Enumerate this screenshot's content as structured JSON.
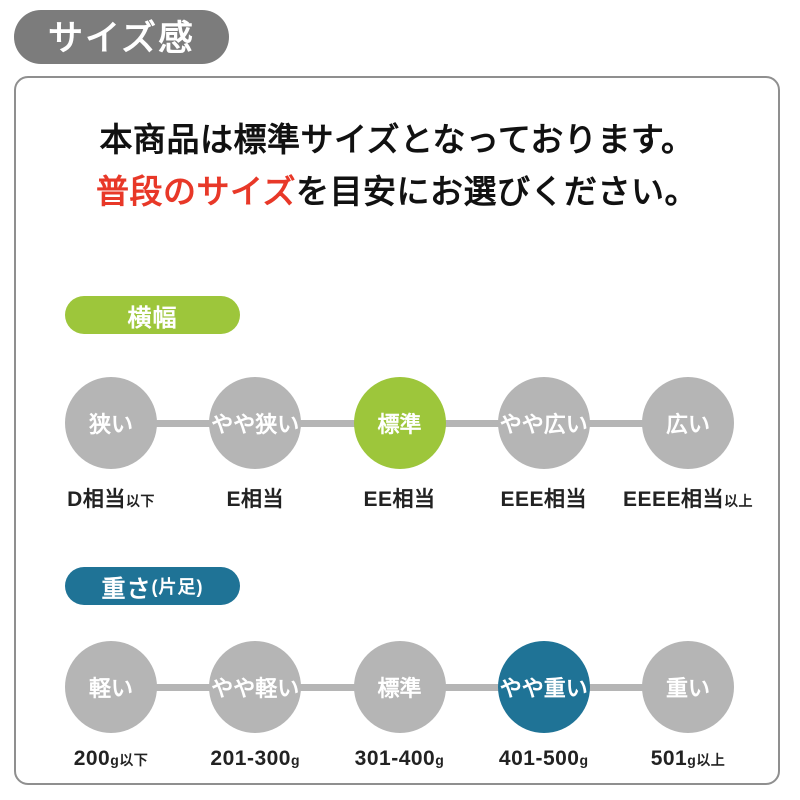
{
  "page": {
    "title_badge": "サイズ感",
    "intro_line1": "本商品は標準サイズとなっております。",
    "intro_line2_highlight": "普段のサイズ",
    "intro_line2_rest": "を目安にお選びください。"
  },
  "colors": {
    "green": "#9dc63b",
    "blue": "#1f7396",
    "gray_circle": "#b5b5b5",
    "badge_gray": "#7c7c7c",
    "border_gray": "#8f8f8f",
    "red": "#e83828"
  },
  "sections": [
    {
      "id": "width",
      "badge": "横幅",
      "badge_suffix": "",
      "accent": "green",
      "steps": [
        {
          "circle": "狭い",
          "active": false,
          "label_main": "D相当",
          "label_suffix": "以下"
        },
        {
          "circle": "やや狭い",
          "active": false,
          "label_main": "E相当",
          "label_suffix": ""
        },
        {
          "circle": "標準",
          "active": true,
          "label_main": "EE相当",
          "label_suffix": ""
        },
        {
          "circle": "やや広い",
          "active": false,
          "label_main": "EEE相当",
          "label_suffix": ""
        },
        {
          "circle": "広い",
          "active": false,
          "label_main": "EEEE相当",
          "label_suffix": "以上"
        }
      ]
    },
    {
      "id": "weight",
      "badge": "重さ",
      "badge_suffix": "(片足)",
      "accent": "blue",
      "steps": [
        {
          "circle": "軽い",
          "active": false,
          "label_main": "200",
          "label_suffix": "g以下"
        },
        {
          "circle": "やや軽い",
          "active": false,
          "label_main": "201-300",
          "label_suffix": "g"
        },
        {
          "circle": "標準",
          "active": false,
          "label_main": "301-400",
          "label_suffix": "g"
        },
        {
          "circle": "やや重い",
          "active": true,
          "label_main": "401-500",
          "label_suffix": "g"
        },
        {
          "circle": "重い",
          "active": false,
          "label_main": "501",
          "label_suffix": "g以上"
        }
      ]
    }
  ]
}
